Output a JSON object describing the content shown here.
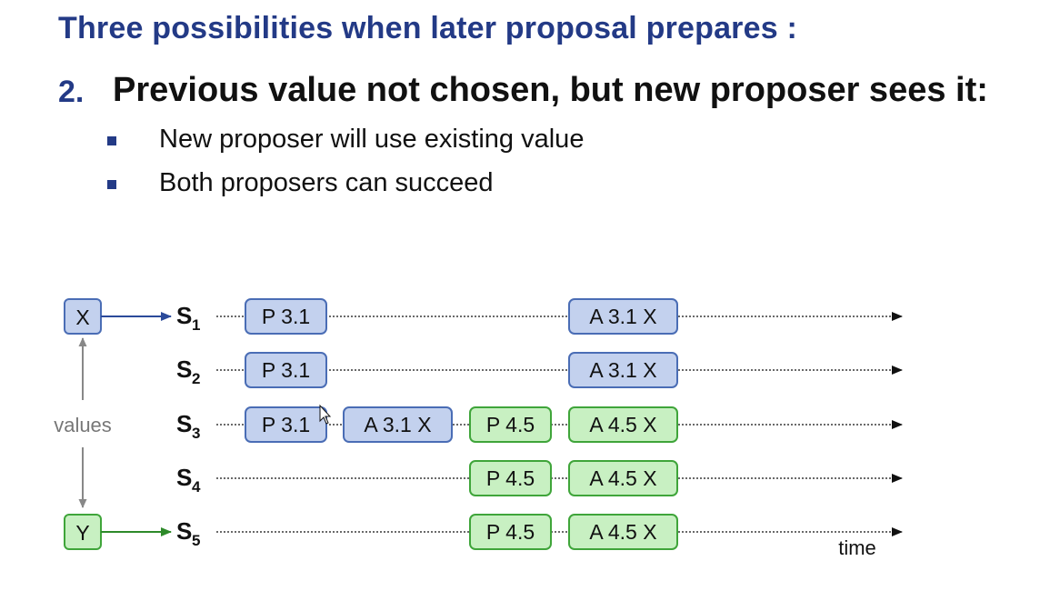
{
  "title": "Three possibilities when later proposal prepares :",
  "point": {
    "number": "2.",
    "text": "Previous value not chosen, but new proposer sees it:"
  },
  "bullets": [
    "New proposer will use existing value",
    "Both proposers can succeed"
  ],
  "diagram": {
    "value_x": "X",
    "value_y": "Y",
    "values_label": "values",
    "time_label": "time",
    "colors": {
      "blue_fill": "#c3d1ee",
      "blue_stroke": "#4a6db5",
      "green_fill": "#c8f0c2",
      "green_stroke": "#3fa53a"
    },
    "servers": [
      {
        "name": "S",
        "sub": "1",
        "events": [
          {
            "label": "P 3.1",
            "color": "blue"
          },
          {
            "label": "A 3.1 X",
            "color": "blue"
          }
        ]
      },
      {
        "name": "S",
        "sub": "2",
        "events": [
          {
            "label": "P 3.1",
            "color": "blue"
          },
          {
            "label": "A 3.1 X",
            "color": "blue"
          }
        ]
      },
      {
        "name": "S",
        "sub": "3",
        "events": [
          {
            "label": "P 3.1",
            "color": "blue"
          },
          {
            "label": "A 3.1 X",
            "color": "blue"
          },
          {
            "label": "P 4.5",
            "color": "green"
          },
          {
            "label": "A 4.5 X",
            "color": "green"
          }
        ]
      },
      {
        "name": "S",
        "sub": "4",
        "events": [
          {
            "label": "P 4.5",
            "color": "green"
          },
          {
            "label": "A 4.5 X",
            "color": "green"
          }
        ]
      },
      {
        "name": "S",
        "sub": "5",
        "events": [
          {
            "label": "P 4.5",
            "color": "green"
          },
          {
            "label": "A 4.5 X",
            "color": "green"
          }
        ]
      }
    ]
  }
}
